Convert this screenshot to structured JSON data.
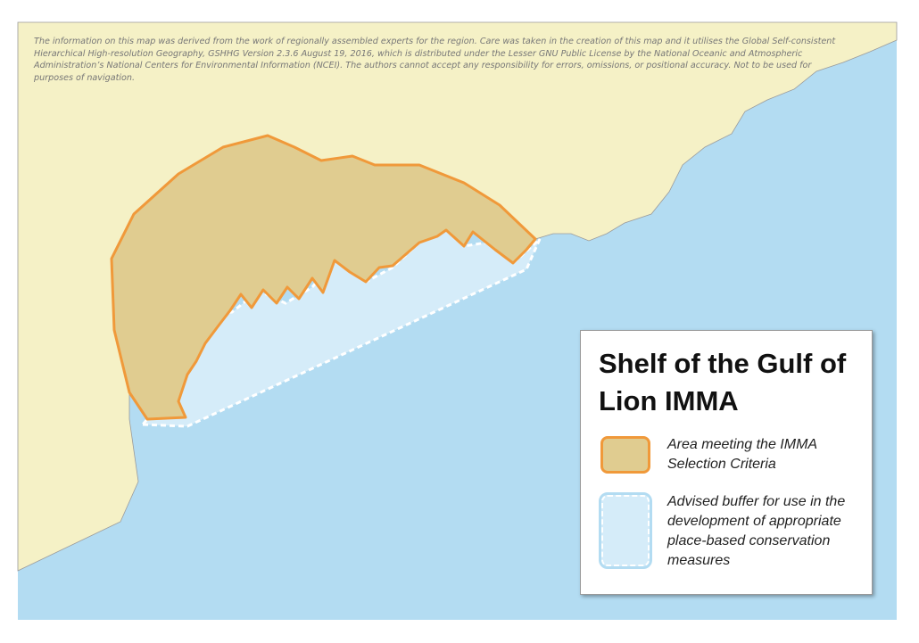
{
  "disclaimer": "The information on this map was derived from the work of regionally assembled experts for the region. Care was taken in the creation of this map and it utilises the Global Self-consistent Hierarchical High-resolution Geography, GSHHG Version 2.3.6 August 19, 2016, which is distributed under the Lesser GNU Public License by the National Oceanic and Atmospheric Administration’s National Centers for Environmental Information (NCEI). The authors cannot accept any responsibility for errors, omissions, or positional accuracy. Not to be used for purposes of navigation.",
  "legend": {
    "title": "Shelf of the Gulf of Lion IMMA",
    "items": [
      {
        "label": "Area meeting the IMMA Selection Criteria"
      },
      {
        "label": "Advised buffer for use in the development of appropriate place-based conservation measures"
      }
    ]
  }
}
